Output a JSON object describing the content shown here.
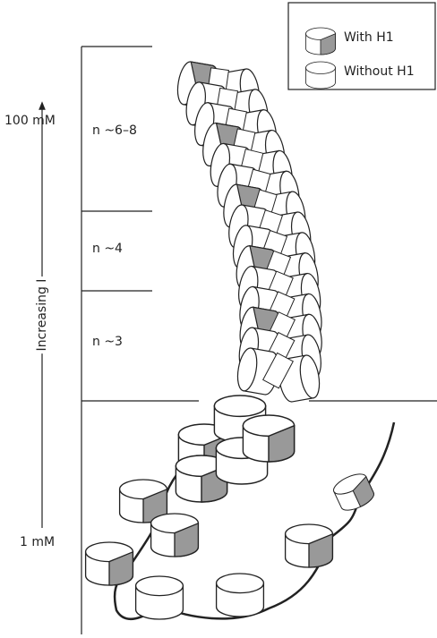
{
  "legend": {
    "with": "With H1",
    "without": "Without H1"
  },
  "axis": {
    "top": "100 mM",
    "bottom": "1 mM",
    "label": "Increasing I"
  },
  "levels": [
    "n ~6–8",
    "n ~4",
    "n ~3"
  ]
}
